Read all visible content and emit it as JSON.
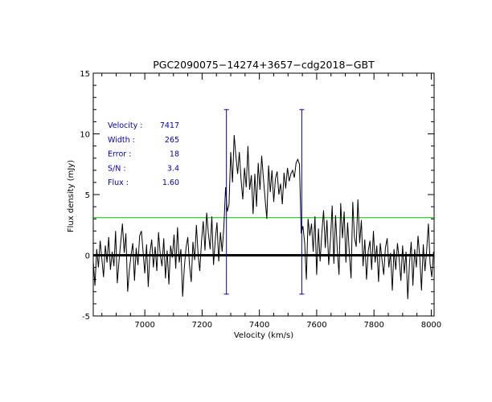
{
  "chart_data": {
    "type": "line",
    "title": "PGC2090075−14274+3657−cdg2018−GBT",
    "xlabel": "Velocity (km/s)",
    "ylabel": "Flux density (mJy)",
    "xlim": [
      6820,
      8010
    ],
    "ylim": [
      -5,
      15
    ],
    "xticks": [
      7000,
      7200,
      7400,
      7600,
      7800,
      8000
    ],
    "yticks": [
      -5,
      0,
      5,
      10,
      15
    ],
    "zero_line": 0,
    "rms_line": 3.1,
    "velocity_window": {
      "low": 7285,
      "high": 7548,
      "bar_ymin": -3.2,
      "bar_ymax": 12
    },
    "stats": [
      {
        "label": "Velocity :",
        "value": "7417"
      },
      {
        "label": "Width    :",
        "value": "265"
      },
      {
        "label": "Error    :",
        "value": "18"
      },
      {
        "label": "S/N      :",
        "value": "3.4"
      },
      {
        "label": "Flux     :",
        "value": "1.60"
      }
    ],
    "colors": {
      "spectrum": "#000000",
      "zero": "#000000",
      "rms": "#00c000",
      "window": "#0000c0",
      "stats": "#0000c0"
    },
    "series": [
      {
        "name": "spectrum",
        "x": [
          6820,
          6826,
          6832,
          6838,
          6844,
          6850,
          6856,
          6862,
          6868,
          6874,
          6880,
          6886,
          6892,
          6898,
          6904,
          6910,
          6916,
          6922,
          6928,
          6934,
          6940,
          6946,
          6952,
          6958,
          6964,
          6970,
          6976,
          6982,
          6988,
          6994,
          7000,
          7006,
          7012,
          7018,
          7024,
          7030,
          7036,
          7042,
          7048,
          7054,
          7060,
          7066,
          7072,
          7078,
          7084,
          7090,
          7096,
          7102,
          7108,
          7114,
          7120,
          7126,
          7132,
          7138,
          7144,
          7150,
          7156,
          7162,
          7168,
          7174,
          7180,
          7186,
          7192,
          7198,
          7204,
          7210,
          7216,
          7222,
          7228,
          7234,
          7240,
          7246,
          7252,
          7258,
          7264,
          7270,
          7276,
          7282,
          7288,
          7294,
          7300,
          7306,
          7312,
          7318,
          7324,
          7330,
          7336,
          7342,
          7348,
          7354,
          7360,
          7366,
          7372,
          7378,
          7384,
          7390,
          7396,
          7402,
          7408,
          7414,
          7420,
          7426,
          7432,
          7438,
          7444,
          7450,
          7456,
          7462,
          7468,
          7474,
          7480,
          7486,
          7492,
          7498,
          7504,
          7510,
          7516,
          7522,
          7528,
          7534,
          7540,
          7546,
          7552,
          7558,
          7564,
          7570,
          7576,
          7582,
          7588,
          7594,
          7600,
          7606,
          7612,
          7618,
          7624,
          7630,
          7636,
          7642,
          7648,
          7654,
          7660,
          7666,
          7672,
          7678,
          7684,
          7690,
          7696,
          7702,
          7708,
          7714,
          7720,
          7726,
          7732,
          7738,
          7744,
          7750,
          7756,
          7762,
          7768,
          7774,
          7780,
          7786,
          7792,
          7798,
          7804,
          7810,
          7816,
          7822,
          7828,
          7834,
          7840,
          7846,
          7852,
          7858,
          7864,
          7870,
          7876,
          7882,
          7888,
          7894,
          7900,
          7906,
          7912,
          7918,
          7924,
          7930,
          7936,
          7942,
          7948,
          7954,
          7960,
          7966,
          7972,
          7978,
          7984,
          7990,
          7996,
          8002,
          8008
        ],
        "y": [
          -0.5,
          -2.5,
          0.5,
          -1.0,
          1.2,
          -0.3,
          -1.8,
          0.8,
          -0.6,
          1.5,
          -1.2,
          0.3,
          -0.9,
          2.0,
          -2.3,
          -0.4,
          1.1,
          2.6,
          0.2,
          1.8,
          -3.0,
          -1.2,
          0.0,
          1.0,
          -2.1,
          0.6,
          -0.8,
          1.6,
          2.0,
          0.3,
          -1.5,
          0.9,
          -2.6,
          0.2,
          1.3,
          -1.0,
          0.7,
          -1.3,
          1.9,
          0.0,
          -0.9,
          1.4,
          -1.9,
          0.4,
          -2.4,
          0.8,
          -0.2,
          1.7,
          -1.1,
          2.3,
          -0.6,
          0.5,
          -3.4,
          -1.0,
          0.6,
          1.5,
          -0.8,
          -2.2,
          1.1,
          -0.4,
          2.5,
          0.1,
          -1.3,
          1.2,
          2.8,
          0.4,
          3.5,
          1.8,
          0.5,
          3.2,
          -0.8,
          1.3,
          2.7,
          -0.5,
          1.9,
          0.3,
          2.4,
          5.6,
          3.6,
          4.2,
          8.5,
          6.0,
          9.9,
          8.2,
          6.7,
          8.5,
          6.2,
          4.6,
          7.2,
          5.6,
          9.0,
          5.4,
          6.6,
          3.4,
          6.7,
          4.0,
          7.6,
          5.4,
          8.2,
          6.4,
          4.6,
          3.0,
          7.4,
          5.2,
          7.0,
          4.4,
          6.3,
          6.9,
          5.0,
          5.9,
          4.2,
          6.8,
          5.5,
          7.2,
          6.1,
          6.7,
          7.0,
          6.4,
          7.6,
          7.9,
          7.5,
          1.8,
          2.4,
          1.0,
          -2.0,
          3.0,
          1.6,
          2.6,
          0.3,
          3.2,
          -1.6,
          2.2,
          -0.5,
          1.8,
          3.7,
          0.6,
          2.9,
          -0.8,
          1.2,
          4.1,
          -0.7,
          3.3,
          0.4,
          -1.6,
          4.3,
          1.4,
          3.6,
          -0.6,
          2.7,
          0.2,
          -1.9,
          4.4,
          1.5,
          0.7,
          4.6,
          1.0,
          2.9,
          -0.9,
          1.3,
          -2.0,
          0.4,
          1.2,
          -1.2,
          2.0,
          -0.6,
          0.8,
          -2.2,
          1.0,
          -0.4,
          -1.6,
          0.6,
          1.4,
          -1.0,
          0.2,
          -2.9,
          0.5,
          -1.2,
          1.0,
          -0.3,
          -2.1,
          0.8,
          -1.5,
          0.3,
          -3.6,
          -0.6,
          1.1,
          -2.5,
          0.5,
          -1.0,
          1.6,
          -0.2,
          -2.9,
          0.9,
          -1.3,
          0.4,
          2.6,
          -0.7,
          -1.8,
          0.3
        ]
      }
    ]
  }
}
